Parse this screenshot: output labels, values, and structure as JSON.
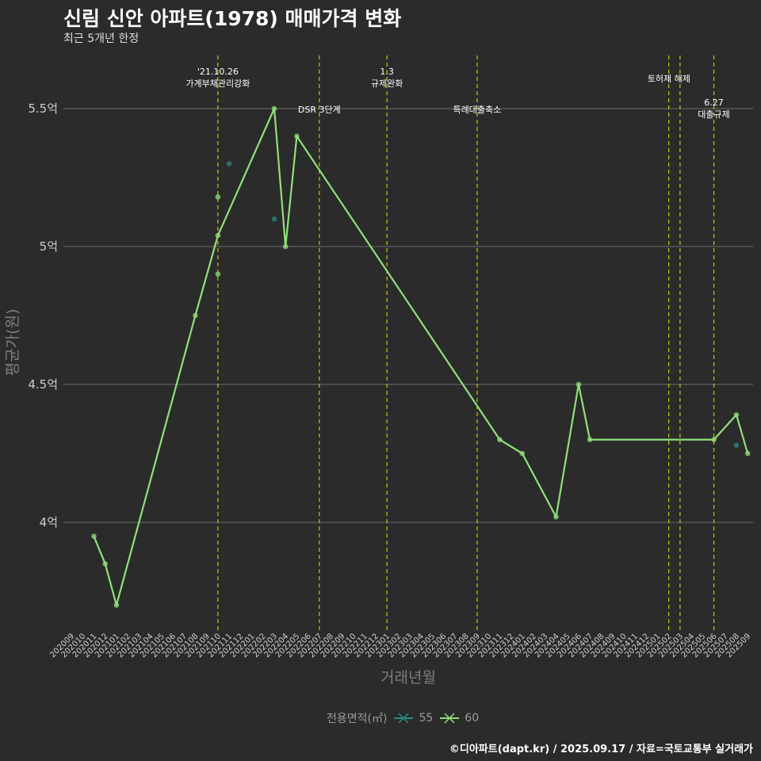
{
  "header": {
    "title": "신림 신안 아파트(1978) 매매가격 변화",
    "subtitle": "최근 5개년 한정"
  },
  "caption": "©디아파트(dapt.kr) / 2025.09.17 / 자료=국토교통부 실거래가",
  "legend": {
    "title": "전용면적(㎡)",
    "items": [
      {
        "label": "55",
        "color": "#2a8a86"
      },
      {
        "label": "60",
        "color": "#90e07a"
      }
    ]
  },
  "chart_data": {
    "type": "line",
    "xlabel": "거래년월",
    "ylabel": "평균가(원)",
    "ylim": [
      3.6,
      5.7
    ],
    "y_ticks": [
      {
        "value": 4.0,
        "label": "4억"
      },
      {
        "value": 4.5,
        "label": "4.5억"
      },
      {
        "value": 5.0,
        "label": "5억"
      },
      {
        "value": 5.5,
        "label": "5.5억"
      }
    ],
    "categories": [
      "202009",
      "202010",
      "202011",
      "202012",
      "202101",
      "202102",
      "202103",
      "202104",
      "202105",
      "202106",
      "202107",
      "202108",
      "202109",
      "202110",
      "202111",
      "202112",
      "202201",
      "202202",
      "202203",
      "202204",
      "202205",
      "202206",
      "202207",
      "202208",
      "202209",
      "202210",
      "202211",
      "202212",
      "202301",
      "202302",
      "202303",
      "202304",
      "202305",
      "202306",
      "202307",
      "202308",
      "202309",
      "202310",
      "202311",
      "202312",
      "202401",
      "202402",
      "202403",
      "202404",
      "202405",
      "202406",
      "202407",
      "202408",
      "202409",
      "202410",
      "202411",
      "202412",
      "202501",
      "202502",
      "202503",
      "202504",
      "202505",
      "202506",
      "202507",
      "202508",
      "202509"
    ],
    "series": [
      {
        "name": "55",
        "color": "#2a8a86",
        "line": false,
        "points": [
          {
            "x": "202111",
            "y": 5.3
          },
          {
            "x": "202203",
            "y": 5.1
          },
          {
            "x": "202508",
            "y": 4.28
          }
        ]
      },
      {
        "name": "60",
        "color": "#90e07a",
        "line": true,
        "points": [
          {
            "x": "202011",
            "y": 3.95
          },
          {
            "x": "202012",
            "y": 3.85
          },
          {
            "x": "202101",
            "y": 3.7
          },
          {
            "x": "202108",
            "y": 4.75
          },
          {
            "x": "202110",
            "y": 5.04
          },
          {
            "x": "202203",
            "y": 5.5
          },
          {
            "x": "202204",
            "y": 5.0
          },
          {
            "x": "202205",
            "y": 5.4
          },
          {
            "x": "202311",
            "y": 4.3
          },
          {
            "x": "202401",
            "y": 4.25
          },
          {
            "x": "202404",
            "y": 4.02
          },
          {
            "x": "202406",
            "y": 4.5
          },
          {
            "x": "202407",
            "y": 4.3
          },
          {
            "x": "202506",
            "y": 4.3
          },
          {
            "x": "202508",
            "y": 4.39
          },
          {
            "x": "202509",
            "y": 4.25
          }
        ],
        "extra_points": [
          {
            "x": "202110",
            "y": 5.18
          },
          {
            "x": "202110",
            "y": 4.9
          }
        ]
      }
    ],
    "vlines": [
      {
        "x": "202110",
        "label_lines": [
          "'21.10.26",
          "가계부채관리강화"
        ],
        "row": "top"
      },
      {
        "x": "202207",
        "label_lines": [
          "DSR 3단계"
        ],
        "row": "low"
      },
      {
        "x": "202301",
        "label_lines": [
          "1.3",
          "규제완화"
        ],
        "row": "top"
      },
      {
        "x": "202309",
        "label_lines": [
          "특례대출축소"
        ],
        "row": "low"
      },
      {
        "x": "202502",
        "label_lines": [
          "토허제 해제"
        ],
        "row": "mid",
        "label_x": "202503"
      },
      {
        "x": "202503",
        "label_lines": [],
        "row": "mid"
      },
      {
        "x": "202506",
        "label_lines": [
          "6.27",
          "대출규제"
        ],
        "row": "lower"
      }
    ]
  }
}
